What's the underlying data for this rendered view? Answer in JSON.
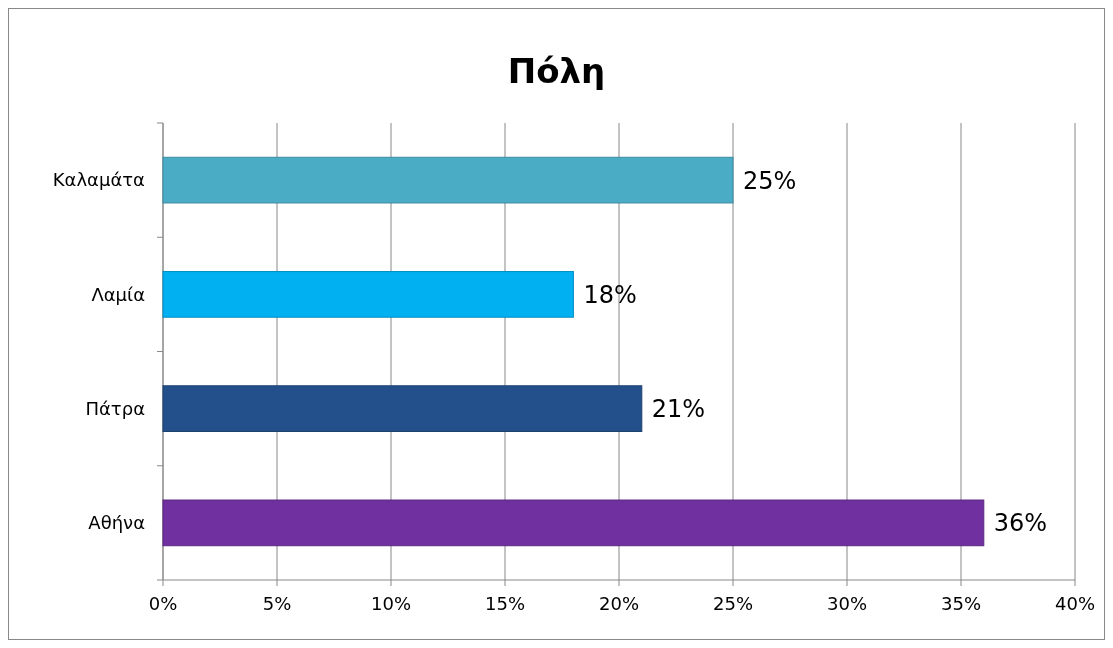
{
  "chart_data": {
    "type": "bar",
    "orientation": "horizontal",
    "title": "Πόλη",
    "categories": [
      "Καλαμάτα",
      "Λαμία",
      "Πάτρα",
      "Αθήνα"
    ],
    "values": [
      25,
      18,
      21,
      36
    ],
    "colors": [
      "#4bacc6",
      "#00b0f0",
      "#23508a",
      "#7030a0"
    ],
    "value_labels": [
      "25%",
      "18%",
      "21%",
      "36%"
    ],
    "xlim": [
      0,
      40
    ],
    "xticks": [
      {
        "value": 0,
        "label": "0%"
      },
      {
        "value": 5,
        "label": "5%"
      },
      {
        "value": 10,
        "label": "10%"
      },
      {
        "value": 15,
        "label": "15%"
      },
      {
        "value": 20,
        "label": "20%"
      },
      {
        "value": 25,
        "label": "25%"
      },
      {
        "value": 30,
        "label": "30%"
      },
      {
        "value": 35,
        "label": "35%"
      },
      {
        "value": 40,
        "label": "40%"
      }
    ],
    "grid": "x"
  }
}
